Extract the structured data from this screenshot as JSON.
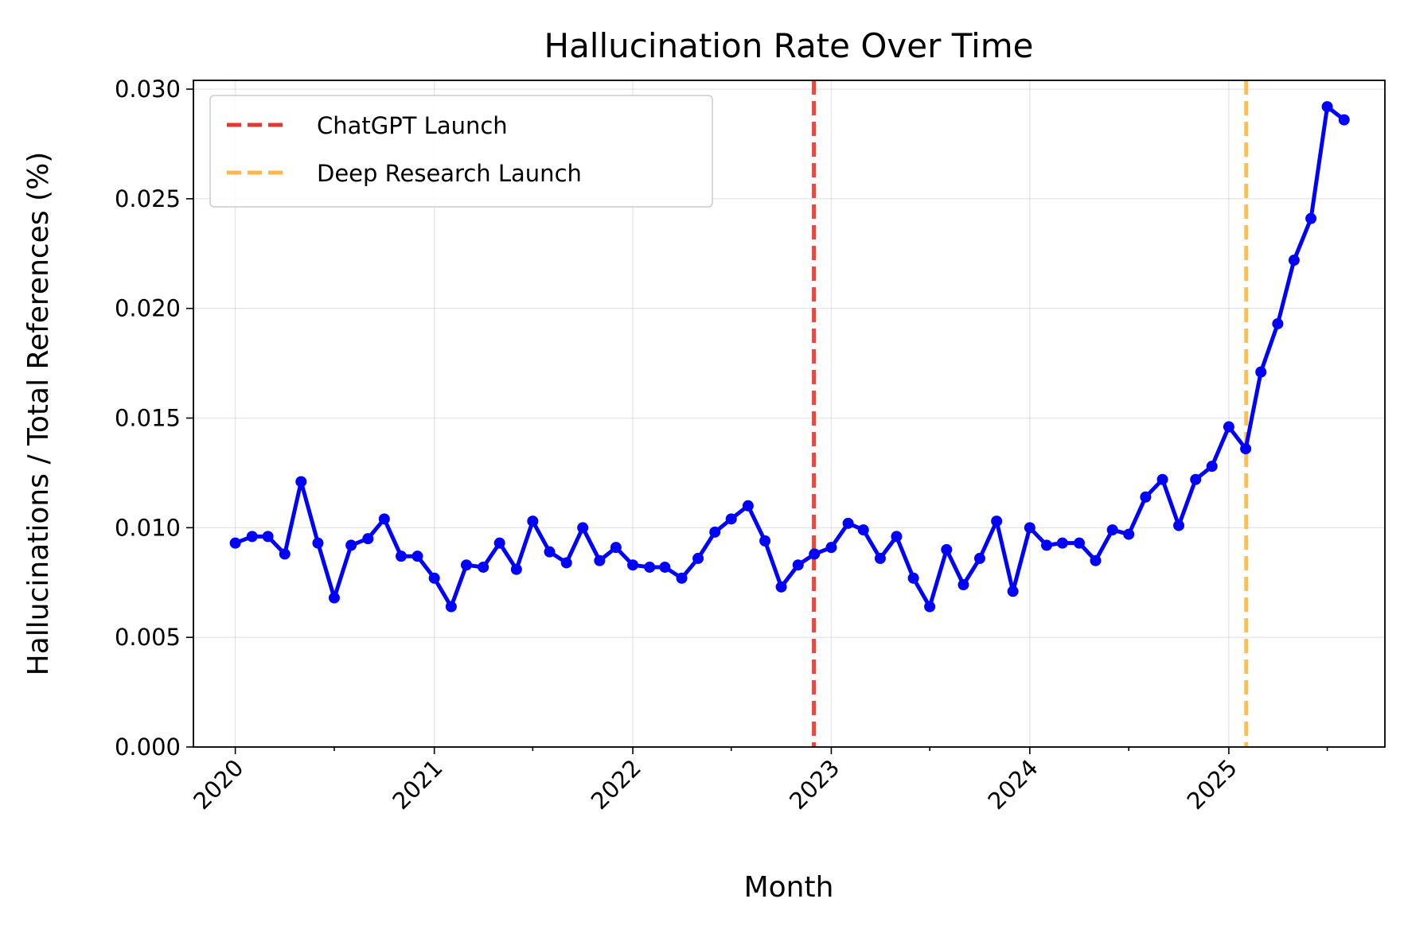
{
  "chart_data": {
    "type": "line",
    "title": "Hallucination Rate Over Time",
    "xlabel": "Month",
    "ylabel": "Hallucinations / Total References (%)",
    "xlim": [
      "2019-10-16",
      "2025-10-15"
    ],
    "ylim": [
      0,
      0.0304
    ],
    "grid": true,
    "legend_position": "top-left",
    "x_ticks": [
      "2020",
      "2021",
      "2022",
      "2023",
      "2024",
      "2025"
    ],
    "y_ticks": [
      "0.000",
      "0.005",
      "0.010",
      "0.015",
      "0.020",
      "0.025",
      "0.030"
    ],
    "series": [
      {
        "name": "",
        "color": "#0000ff",
        "x": [
          "2020-01",
          "2020-02",
          "2020-03",
          "2020-04",
          "2020-05",
          "2020-06",
          "2020-07",
          "2020-08",
          "2020-09",
          "2020-10",
          "2020-11",
          "2020-12",
          "2021-01",
          "2021-02",
          "2021-03",
          "2021-04",
          "2021-05",
          "2021-06",
          "2021-07",
          "2021-08",
          "2021-09",
          "2021-10",
          "2021-11",
          "2021-12",
          "2022-01",
          "2022-02",
          "2022-03",
          "2022-04",
          "2022-05",
          "2022-06",
          "2022-07",
          "2022-08",
          "2022-09",
          "2022-10",
          "2022-11",
          "2022-12",
          "2023-01",
          "2023-02",
          "2023-03",
          "2023-04",
          "2023-05",
          "2023-06",
          "2023-07",
          "2023-08",
          "2023-09",
          "2023-10",
          "2023-11",
          "2023-12",
          "2024-01",
          "2024-02",
          "2024-03",
          "2024-04",
          "2024-05",
          "2024-06",
          "2024-07",
          "2024-08",
          "2024-09",
          "2024-10",
          "2024-11",
          "2024-12",
          "2025-01",
          "2025-02",
          "2025-03",
          "2025-04",
          "2025-05",
          "2025-06",
          "2025-07",
          "2025-08"
        ],
        "values": [
          0.0093,
          0.0096,
          0.0096,
          0.0088,
          0.0121,
          0.0093,
          0.0068,
          0.0092,
          0.0095,
          0.0104,
          0.0087,
          0.0087,
          0.0077,
          0.0064,
          0.0083,
          0.0082,
          0.0093,
          0.0081,
          0.0103,
          0.0089,
          0.0084,
          0.01,
          0.0085,
          0.0091,
          0.0083,
          0.0082,
          0.0082,
          0.0077,
          0.0086,
          0.0098,
          0.0104,
          0.011,
          0.0094,
          0.0073,
          0.0083,
          0.0088,
          0.0091,
          0.0102,
          0.0099,
          0.0086,
          0.0096,
          0.0077,
          0.0064,
          0.009,
          0.0074,
          0.0086,
          0.0103,
          0.0071,
          0.01,
          0.0092,
          0.0093,
          0.0093,
          0.0085,
          0.0099,
          0.0097,
          0.0114,
          0.0122,
          0.0101,
          0.0122,
          0.0128,
          0.0146,
          0.0136,
          0.0171,
          0.0193,
          0.0222,
          0.0241,
          0.0292,
          0.0286
        ]
      }
    ],
    "vlines": [
      {
        "name": "ChatGPT Launch",
        "x": "2022-11-30",
        "color": "#e8372f",
        "style": "dashed"
      },
      {
        "name": "Deep Research Launch",
        "x": "2025-02-02",
        "color": "#ffb845",
        "style": "dashed"
      }
    ]
  }
}
